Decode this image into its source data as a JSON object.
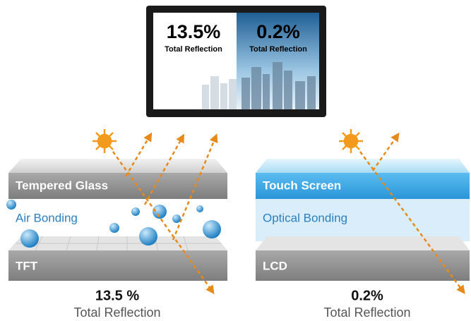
{
  "monitor": {
    "left": {
      "value": "13.5%",
      "label": "Total Reflection"
    },
    "right": {
      "value": "0.2%",
      "label": "Total Reflection"
    }
  },
  "left_panel": {
    "layers": [
      "Tempered Glass",
      "Air Bonding",
      "TFT"
    ],
    "result": {
      "value": "13.5 %",
      "label": "Total Reflection"
    }
  },
  "right_panel": {
    "layers": [
      "Touch Screen",
      "Optical Bonding",
      "LCD"
    ],
    "result": {
      "value": "0.2%",
      "label": "Total Reflection"
    }
  }
}
